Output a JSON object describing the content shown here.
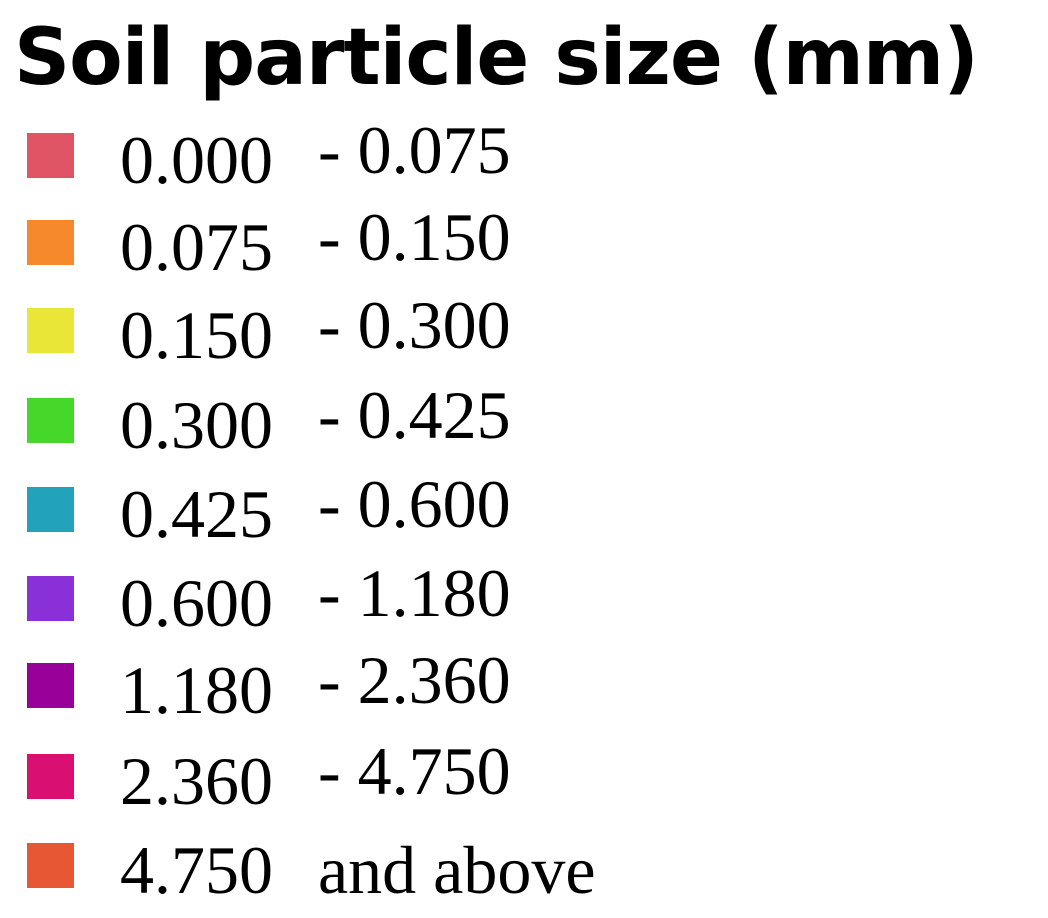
{
  "legend": {
    "title": "Soil particle size (mm)",
    "items": [
      {
        "low": "0.000",
        "high": "- 0.075",
        "color": "#e05566"
      },
      {
        "low": "0.075",
        "high": "- 0.150",
        "color": "#f5892b"
      },
      {
        "low": "0.150",
        "high": "- 0.300",
        "color": "#e9e637"
      },
      {
        "low": "0.300",
        "high": "- 0.425",
        "color": "#45d82a"
      },
      {
        "low": "0.425",
        "high": "- 0.600",
        "color": "#23a3bb"
      },
      {
        "low": "0.600",
        "high": "- 1.180",
        "color": "#8a30d8"
      },
      {
        "low": "1.180",
        "high": "- 2.360",
        "color": "#990099"
      },
      {
        "low": "2.360",
        "high": "- 4.750",
        "color": "#d91072"
      },
      {
        "low": "4.750",
        "high": "and above",
        "color": "#e75733"
      }
    ]
  }
}
